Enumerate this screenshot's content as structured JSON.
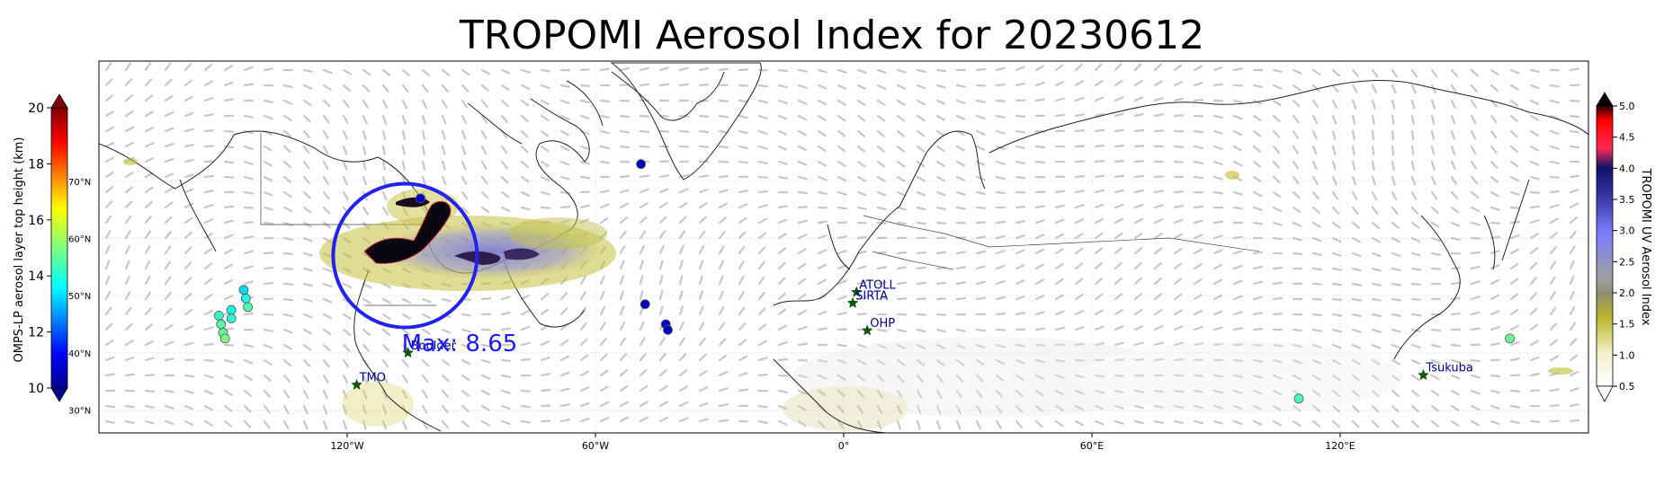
{
  "title": "TROPOMI Aerosol Index for 20230612",
  "lon_ticks": [
    {
      "lon": -120,
      "label": "120°W"
    },
    {
      "lon": -60,
      "label": "60°W"
    },
    {
      "lon": 0,
      "label": "0°"
    },
    {
      "lon": 60,
      "label": "60°E"
    },
    {
      "lon": 120,
      "label": "120°E"
    }
  ],
  "lat_ticks": [
    {
      "lat": 30,
      "label": "30°N"
    },
    {
      "lat": 40,
      "label": "40°N"
    },
    {
      "lat": 50,
      "label": "50°N"
    },
    {
      "lat": 60,
      "label": "60°N"
    },
    {
      "lat": 70,
      "label": "70°N"
    }
  ],
  "left_colorbar": {
    "label": "OMPS-LP aerosol layer top height (km)",
    "ticks": [
      "10",
      "12",
      "14",
      "16",
      "18",
      "20"
    ],
    "range": [
      10,
      20
    ],
    "colormap": "jet"
  },
  "right_colorbar": {
    "label": "TROPOMI UV Aerosol Index",
    "ticks": [
      "0.5",
      "1.0",
      "1.5",
      "2.0",
      "2.5",
      "3.0",
      "3.5",
      "4.0",
      "4.5",
      "5.0"
    ],
    "range": [
      0.5,
      5.0
    ]
  },
  "stations": [
    {
      "name": "ATOLL",
      "lon": 3.1,
      "lat": 50.6
    },
    {
      "name": "SIRTA",
      "lon": 2.2,
      "lat": 48.7
    },
    {
      "name": "OHP",
      "lon": 5.7,
      "lat": 43.9
    },
    {
      "name": "Boulder",
      "lon": -105.3,
      "lat": 40.0
    },
    {
      "name": "TMO",
      "lon": -117.7,
      "lat": 34.4
    },
    {
      "name": "Tsukuba",
      "lon": 140.1,
      "lat": 36.1
    }
  ],
  "max_annotation": {
    "text": "Max: 8.65",
    "lon": -105.3,
    "lat": 40.6,
    "color": "#1a1aff"
  },
  "max_circle": {
    "lon": -106.0,
    "lat": 57.0,
    "color": "#2222ee"
  },
  "omps_points": [
    {
      "lon": -49.0,
      "lat": 73.0,
      "h": 10.5
    },
    {
      "lon": -102.3,
      "lat": 67.0,
      "h": 10.8
    },
    {
      "lon": -48.0,
      "lat": 48.5,
      "h": 10.6
    },
    {
      "lon": -43.0,
      "lat": 45.0,
      "h": 10.8
    },
    {
      "lon": -42.5,
      "lat": 44.0,
      "h": 10.6
    },
    {
      "lon": -145.0,
      "lat": 51.0,
      "h": 13.4
    },
    {
      "lon": -144.5,
      "lat": 49.5,
      "h": 14.0
    },
    {
      "lon": -144.0,
      "lat": 48.0,
      "h": 14.5
    },
    {
      "lon": -148.0,
      "lat": 47.5,
      "h": 14.0
    },
    {
      "lon": -148.0,
      "lat": 46.0,
      "h": 14.2
    },
    {
      "lon": -151.0,
      "lat": 46.5,
      "h": 14.3
    },
    {
      "lon": -150.5,
      "lat": 45.0,
      "h": 14.6
    },
    {
      "lon": -150.0,
      "lat": 43.5,
      "h": 14.7
    },
    {
      "lon": -149.5,
      "lat": 42.5,
      "h": 15.0
    },
    {
      "lon": 110.0,
      "lat": 32.0,
      "h": 14.5
    },
    {
      "lon": 161.0,
      "lat": 42.5,
      "h": 14.8
    }
  ],
  "extent": {
    "lon": [
      -180,
      180
    ],
    "lat": [
      26,
      91
    ]
  }
}
